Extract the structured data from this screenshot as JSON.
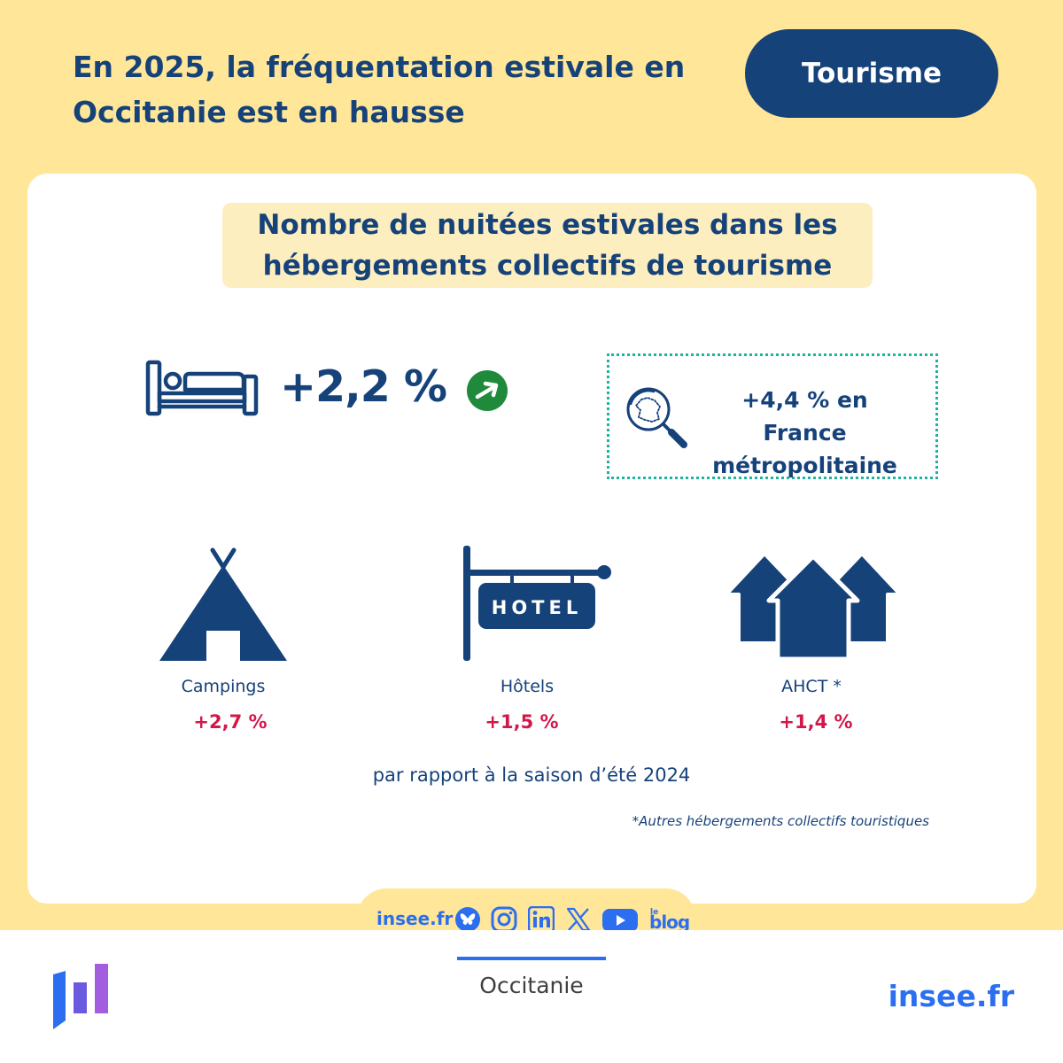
{
  "header": {
    "headline_line1": "En 2025, la fréquentation estivale en",
    "headline_line2": "Occitanie est en hausse",
    "theme": "Tourisme"
  },
  "section": {
    "title_line1": "Nombre de nuitées estivales dans les",
    "title_line2": "hébergements collectifs de tourisme"
  },
  "overall": {
    "value": "+2,2 %",
    "icon": "bed-icon",
    "trend_icon": "trend-up-arrow-icon"
  },
  "france": {
    "line1": "+4,4 % en France",
    "line2": "métropolitaine",
    "icon": "magnifier-france-icon"
  },
  "categories": [
    {
      "label": "Campings",
      "value": "+2,7 %",
      "icon": "tent-icon"
    },
    {
      "label": "Hôtels",
      "value": "+1,5 %",
      "icon": "hotel-sign-icon",
      "sign_text": "HOTEL"
    },
    {
      "label": "AHCT *",
      "value": "+1,4 %",
      "icon": "houses-icon"
    }
  ],
  "comparison": "par rapport à la saison d’été 2024",
  "footnote": "*Autres hébergements collectifs touristiques",
  "social": {
    "site": "insee.fr",
    "icons": [
      "bluesky-icon",
      "instagram-icon",
      "linkedin-icon",
      "x-icon",
      "youtube-icon",
      "blog-icon"
    ],
    "blog_small": "le",
    "blog": "blog"
  },
  "footer": {
    "region": "Occitanie",
    "brand": "insee.fr"
  },
  "colors": {
    "navy": "#16427a",
    "background": "#ffe698",
    "title_band": "#fdeec0",
    "positive_value": "#d4174a",
    "trend_green": "#1f8a3b",
    "dotted_border": "#1fb29e",
    "link_blue": "#2b6ff0"
  }
}
